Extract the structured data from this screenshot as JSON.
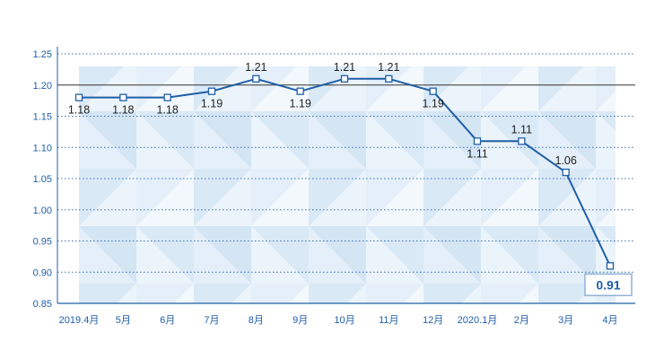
{
  "chart_data": {
    "type": "line",
    "title": "",
    "xlabel": "",
    "ylabel": "",
    "categories": [
      "2019.4月",
      "5月",
      "6月",
      "7月",
      "8月",
      "9月",
      "10月",
      "11月",
      "12月",
      "2020.1月",
      "2月",
      "3月",
      "4月"
    ],
    "values": [
      1.18,
      1.18,
      1.18,
      1.19,
      1.21,
      1.19,
      1.21,
      1.21,
      1.19,
      1.11,
      1.11,
      1.06,
      0.91
    ],
    "data_labels": [
      "1.18",
      "1.18",
      "1.18",
      "1.19",
      "1.21",
      "1.19",
      "1.21",
      "1.21",
      "1.19",
      "1.11",
      "1.11",
      "1.06",
      "0.91"
    ],
    "y_ticks": [
      "0.85",
      "0.90",
      "0.95",
      "1.00",
      "1.05",
      "1.10",
      "1.15",
      "1.20",
      "1.25"
    ],
    "ylim": [
      0.85,
      1.25
    ],
    "grid": "horizontal dotted, solid line at 1.20",
    "highlighted_point": "last",
    "colors": {
      "line": "#1f5fa8",
      "axis_text": "#1f5fa8",
      "grid": "#3a6fb0",
      "reference_line": "#333333",
      "background_pattern": "#cfe2f3"
    }
  }
}
